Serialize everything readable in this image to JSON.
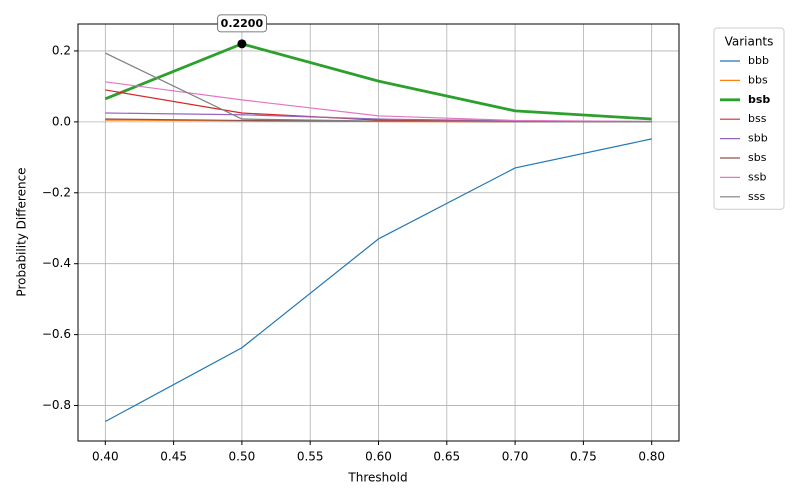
{
  "chart_data": {
    "type": "line",
    "x_label": "Threshold",
    "y_label": "Probability Difference",
    "x": [
      0.4,
      0.5,
      0.6,
      0.7,
      0.8
    ],
    "series": [
      {
        "name": "bbb",
        "color": "#1f77b4",
        "linewidth": 1.2,
        "values": [
          -0.845,
          -0.637,
          -0.33,
          -0.13,
          -0.048
        ]
      },
      {
        "name": "bbs",
        "color": "#ff7f0e",
        "linewidth": 1.2,
        "values": [
          0.005,
          0.003,
          0.001,
          0,
          0
        ]
      },
      {
        "name": "bsb",
        "color": "#2ca02c",
        "linewidth": 2.8,
        "bold": true,
        "values": [
          0.065,
          0.22,
          0.115,
          0.031,
          0.008
        ]
      },
      {
        "name": "bss",
        "color": "#d62728",
        "linewidth": 1.2,
        "values": [
          0.09,
          0.025,
          0.005,
          0.001,
          0
        ]
      },
      {
        "name": "sbb",
        "color": "#9467bd",
        "linewidth": 1.2,
        "values": [
          0.025,
          0.02,
          0.008,
          0.003,
          0.001
        ]
      },
      {
        "name": "sbs",
        "color": "#8c564b",
        "linewidth": 1.2,
        "values": [
          0.008,
          0.004,
          0.002,
          0.001,
          0
        ]
      },
      {
        "name": "ssb",
        "color": "#e377c2",
        "linewidth": 1.2,
        "values": [
          0.113,
          0.062,
          0.017,
          0.004,
          0.001
        ]
      },
      {
        "name": "sss",
        "color": "#7f7f7f",
        "linewidth": 1.2,
        "values": [
          0.194,
          0.008,
          0.002,
          0,
          0
        ]
      }
    ],
    "xlim": [
      0.38,
      0.82
    ],
    "xticks": [
      {
        "value": 0.4,
        "label": "0.40"
      },
      {
        "value": 0.45,
        "label": "0.45"
      },
      {
        "value": 0.5,
        "label": "0.50"
      },
      {
        "value": 0.55,
        "label": "0.55"
      },
      {
        "value": 0.6,
        "label": "0.60"
      },
      {
        "value": 0.65,
        "label": "0.65"
      },
      {
        "value": 0.7,
        "label": "0.70"
      },
      {
        "value": 0.75,
        "label": "0.75"
      },
      {
        "value": 0.8,
        "label": "0.80"
      }
    ],
    "ylim": [
      -0.9,
      0.276
    ],
    "yticks": [
      {
        "value": -0.8,
        "label": "−0.8"
      },
      {
        "value": -0.6,
        "label": "−0.6"
      },
      {
        "value": -0.4,
        "label": "−0.4"
      },
      {
        "value": -0.2,
        "label": "−0.2"
      },
      {
        "value": 0,
        "label": "0.0"
      },
      0.2
    ],
    "grid": true,
    "legend_title": "Variants",
    "legend_position": "outside upper right",
    "annotations": [
      {
        "text": "0.2200",
        "x": 0.5,
        "y": 0.22
      }
    ]
  }
}
